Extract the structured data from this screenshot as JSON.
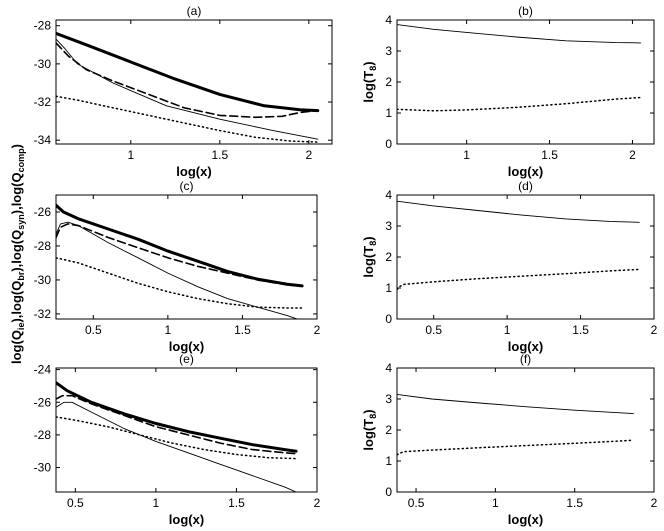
{
  "shared_ylabel": {
    "parts": [
      "log(Q",
      "ie",
      "),log(Q",
      "br",
      "),log(Q",
      "syn",
      "),log(Q",
      "comp",
      ")"
    ]
  },
  "chart_data": [
    {
      "id": "a",
      "type": "line",
      "title": "(a)",
      "xlabel": "log(x)",
      "ylabel": "",
      "xlim": [
        0.58,
        2.13
      ],
      "ylim": [
        -34.2,
        -27.7
      ],
      "xticks": [
        1,
        1.5,
        2
      ],
      "xtick_labels": [
        "1",
        "1.5",
        "2"
      ],
      "yticks": [
        -34,
        -32,
        -30,
        -28
      ],
      "ytick_labels": [
        "-34",
        "-32",
        "-30",
        "-28"
      ],
      "series": [
        {
          "name": "thick",
          "style": "thick",
          "x": [
            0.58,
            0.75,
            1.0,
            1.25,
            1.5,
            1.75,
            1.95,
            2.05
          ],
          "y": [
            -28.4,
            -29.0,
            -29.9,
            -30.8,
            -31.6,
            -32.2,
            -32.4,
            -32.45
          ]
        },
        {
          "name": "dashed",
          "style": "dashed",
          "x": [
            0.58,
            0.65,
            0.75,
            0.9,
            1.1,
            1.3,
            1.5,
            1.7,
            1.85,
            1.95,
            2.05
          ],
          "y": [
            -28.9,
            -29.6,
            -30.3,
            -30.9,
            -31.6,
            -32.3,
            -32.7,
            -32.8,
            -32.75,
            -32.55,
            -32.45
          ]
        },
        {
          "name": "thin",
          "style": "thin",
          "x": [
            0.58,
            0.63,
            0.7,
            0.9,
            1.2,
            1.5,
            1.8,
            2.05
          ],
          "y": [
            -28.7,
            -29.2,
            -30.0,
            -31.0,
            -32.2,
            -32.9,
            -33.5,
            -33.95
          ]
        },
        {
          "name": "dotted",
          "style": "dotted",
          "x": [
            0.58,
            0.7,
            0.9,
            1.2,
            1.5,
            1.7,
            1.9,
            2.05
          ],
          "y": [
            -31.7,
            -31.9,
            -32.3,
            -32.9,
            -33.5,
            -33.85,
            -34.05,
            -34.1
          ]
        }
      ]
    },
    {
      "id": "b",
      "type": "line",
      "title": "(b)",
      "xlabel": "log(x)",
      "ylabel": "log(T8)",
      "ylabel_parts": [
        "log(T",
        "8",
        ")"
      ],
      "xlim": [
        0.58,
        2.13
      ],
      "ylim": [
        0,
        4
      ],
      "xticks": [
        1,
        1.5,
        2
      ],
      "xtick_labels": [
        "1",
        "1.5",
        "2"
      ],
      "yticks": [
        0,
        1,
        2,
        3,
        4
      ],
      "ytick_labels": [
        "0",
        "1",
        "2",
        "3",
        "4"
      ],
      "series": [
        {
          "name": "solid",
          "style": "thin",
          "x": [
            0.58,
            0.8,
            1.0,
            1.3,
            1.6,
            1.9,
            2.05
          ],
          "y": [
            3.85,
            3.7,
            3.6,
            3.45,
            3.33,
            3.27,
            3.26
          ]
        },
        {
          "name": "dotted",
          "style": "dotted",
          "x": [
            0.58,
            0.8,
            1.0,
            1.3,
            1.6,
            1.9,
            2.05
          ],
          "y": [
            1.12,
            1.07,
            1.1,
            1.18,
            1.3,
            1.45,
            1.5
          ]
        }
      ]
    },
    {
      "id": "c",
      "type": "line",
      "title": "(c)",
      "xlabel": "log(x)",
      "ylabel": "",
      "xlim": [
        0.25,
        2.0
      ],
      "ylim": [
        -32.3,
        -25.0
      ],
      "xticks": [
        0.5,
        1,
        1.5,
        2
      ],
      "xtick_labels": [
        "0.5",
        "1",
        "1.5",
        "2"
      ],
      "yticks": [
        -32,
        -30,
        -28,
        -26
      ],
      "ytick_labels": [
        "-32",
        "-30",
        "-28",
        "-26"
      ],
      "series": [
        {
          "name": "thick",
          "style": "thick",
          "x": [
            0.25,
            0.3,
            0.4,
            0.6,
            0.8,
            1.0,
            1.2,
            1.4,
            1.6,
            1.8,
            1.9
          ],
          "y": [
            -25.6,
            -26.0,
            -26.4,
            -27.0,
            -27.6,
            -28.3,
            -28.9,
            -29.5,
            -29.95,
            -30.25,
            -30.35
          ]
        },
        {
          "name": "dashed",
          "style": "dashed",
          "x": [
            0.25,
            0.28,
            0.33,
            0.4,
            0.6,
            0.8,
            1.0,
            1.2,
            1.4,
            1.6,
            1.8,
            1.9
          ],
          "y": [
            -27.5,
            -26.9,
            -26.7,
            -26.8,
            -27.5,
            -28.1,
            -28.7,
            -29.2,
            -29.6,
            -30.0,
            -30.3,
            -30.35
          ]
        },
        {
          "name": "thin",
          "style": "thin",
          "x": [
            0.25,
            0.28,
            0.33,
            0.4,
            0.6,
            0.8,
            1.0,
            1.2,
            1.4,
            1.6,
            1.8,
            1.9
          ],
          "y": [
            -27.3,
            -26.7,
            -26.6,
            -26.8,
            -27.8,
            -28.7,
            -29.6,
            -30.4,
            -31.1,
            -31.6,
            -32.1,
            -32.4
          ]
        },
        {
          "name": "dotted",
          "style": "dotted",
          "x": [
            0.25,
            0.4,
            0.6,
            0.8,
            1.0,
            1.2,
            1.4,
            1.6,
            1.8,
            1.9
          ],
          "y": [
            -28.7,
            -29.0,
            -29.6,
            -30.2,
            -30.7,
            -31.1,
            -31.4,
            -31.6,
            -31.65,
            -31.65
          ]
        }
      ]
    },
    {
      "id": "d",
      "type": "line",
      "title": "(d)",
      "xlabel": "log(x)",
      "ylabel": "log(T8)",
      "ylabel_parts": [
        "log(T",
        "8",
        ")"
      ],
      "xlim": [
        0.25,
        2.0
      ],
      "ylim": [
        0,
        4
      ],
      "xticks": [
        0.5,
        1,
        1.5,
        2
      ],
      "xtick_labels": [
        "0.5",
        "1",
        "1.5",
        "2"
      ],
      "yticks": [
        0,
        1,
        2,
        3,
        4
      ],
      "ytick_labels": [
        "0",
        "1",
        "2",
        "3",
        "4"
      ],
      "series": [
        {
          "name": "solid",
          "style": "thin",
          "x": [
            0.25,
            0.5,
            0.8,
            1.1,
            1.4,
            1.7,
            1.9
          ],
          "y": [
            3.8,
            3.65,
            3.5,
            3.35,
            3.23,
            3.15,
            3.12
          ]
        },
        {
          "name": "dotted",
          "style": "dotted",
          "x": [
            0.25,
            0.27,
            0.3,
            0.5,
            0.8,
            1.1,
            1.4,
            1.7,
            1.9
          ],
          "y": [
            0.95,
            1.05,
            1.12,
            1.2,
            1.3,
            1.38,
            1.46,
            1.55,
            1.6
          ]
        }
      ]
    },
    {
      "id": "e",
      "type": "line",
      "title": "(e)",
      "xlabel": "log(x)",
      "ylabel": "",
      "xlim": [
        0.38,
        2.0
      ],
      "ylim": [
        -31.5,
        -23.9
      ],
      "xticks": [
        0.5,
        1,
        1.5,
        2
      ],
      "xtick_labels": [
        "0.5",
        "1",
        "1.5",
        "2"
      ],
      "yticks": [
        -30,
        -28,
        -26,
        -24
      ],
      "ytick_labels": [
        "-30",
        "-28",
        "-26",
        "-24"
      ],
      "series": [
        {
          "name": "thick",
          "style": "thick",
          "x": [
            0.38,
            0.45,
            0.6,
            0.8,
            1.0,
            1.2,
            1.4,
            1.6,
            1.8,
            1.87
          ],
          "y": [
            -24.8,
            -25.3,
            -26.0,
            -26.7,
            -27.3,
            -27.8,
            -28.2,
            -28.6,
            -28.9,
            -29.0
          ]
        },
        {
          "name": "dashed",
          "style": "dashed",
          "x": [
            0.38,
            0.42,
            0.48,
            0.6,
            0.8,
            1.0,
            1.2,
            1.4,
            1.6,
            1.8,
            1.87
          ],
          "y": [
            -25.8,
            -25.6,
            -25.6,
            -26.1,
            -26.8,
            -27.5,
            -28.0,
            -28.5,
            -28.9,
            -29.1,
            -29.15
          ]
        },
        {
          "name": "thin",
          "style": "thin",
          "x": [
            0.38,
            0.43,
            0.48,
            0.6,
            0.8,
            1.0,
            1.2,
            1.4,
            1.6,
            1.8,
            1.87
          ],
          "y": [
            -26.3,
            -26.0,
            -26.0,
            -26.6,
            -27.6,
            -28.4,
            -29.1,
            -29.8,
            -30.5,
            -31.2,
            -31.5
          ]
        },
        {
          "name": "dotted",
          "style": "dotted",
          "x": [
            0.38,
            0.5,
            0.7,
            0.9,
            1.1,
            1.3,
            1.5,
            1.7,
            1.87
          ],
          "y": [
            -26.9,
            -27.1,
            -27.5,
            -28.0,
            -28.5,
            -28.9,
            -29.2,
            -29.4,
            -29.45
          ]
        }
      ]
    },
    {
      "id": "f",
      "type": "line",
      "title": "(f)",
      "xlabel": "log(x)",
      "ylabel": "log(T8)",
      "ylabel_parts": [
        "log(T",
        "8",
        ")"
      ],
      "xlim": [
        0.38,
        2.0
      ],
      "ylim": [
        0,
        4
      ],
      "xticks": [
        0.5,
        1,
        1.5,
        2
      ],
      "xtick_labels": [
        "0.5",
        "1",
        "1.5",
        "2"
      ],
      "yticks": [
        0,
        1,
        2,
        3,
        4
      ],
      "ytick_labels": [
        "0",
        "1",
        "2",
        "3",
        "4"
      ],
      "series": [
        {
          "name": "solid",
          "style": "thin",
          "x": [
            0.38,
            0.6,
            0.9,
            1.2,
            1.5,
            1.8,
            1.87
          ],
          "y": [
            3.15,
            3.0,
            2.87,
            2.75,
            2.64,
            2.55,
            2.53
          ]
        },
        {
          "name": "dotted",
          "style": "dotted",
          "x": [
            0.38,
            0.42,
            0.6,
            0.9,
            1.2,
            1.5,
            1.8,
            1.87
          ],
          "y": [
            1.2,
            1.3,
            1.35,
            1.43,
            1.5,
            1.57,
            1.65,
            1.67
          ]
        }
      ]
    }
  ]
}
